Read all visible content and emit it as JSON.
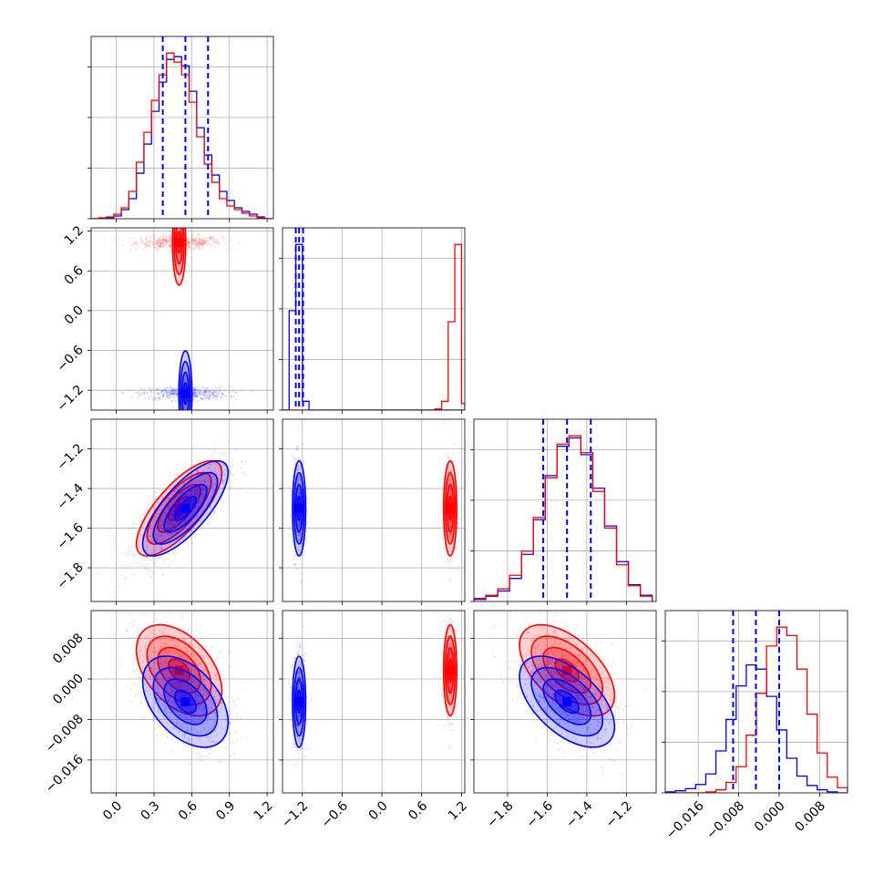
{
  "chart_data": {
    "type": "corner",
    "parameters": 4,
    "grid": true,
    "colors": {
      "series_a": "#ff0000",
      "series_b": "#0000ff",
      "quantile_line": "#0000ff"
    },
    "axes": [
      {
        "range": [
          -0.2,
          1.25
        ],
        "ticks": [
          0.0,
          0.3,
          0.6,
          0.9,
          1.2
        ],
        "tick_labels": [
          "0.0",
          "0.3",
          "0.6",
          "0.9",
          "1.2"
        ]
      },
      {
        "range": [
          -1.5,
          1.25
        ],
        "ticks": [
          -1.2,
          -0.6,
          0.0,
          0.6,
          1.2
        ],
        "tick_labels": [
          "−1.2",
          "−0.6",
          "0.0",
          "0.6",
          "1.2"
        ]
      },
      {
        "range": [
          -1.97,
          -1.05
        ],
        "ticks": [
          -1.8,
          -1.6,
          -1.4,
          -1.2
        ],
        "tick_labels": [
          "−1.8",
          "−1.6",
          "−1.4",
          "−1.2"
        ]
      },
      {
        "range": [
          -0.0225,
          0.0135
        ],
        "ticks": [
          -0.016,
          -0.008,
          0.0,
          0.008
        ],
        "tick_labels": [
          "−0.016",
          "−0.008",
          "0.000",
          "0.008"
        ]
      }
    ],
    "series": [
      {
        "name": "",
        "color": "#ff0000",
        "mean": [
          0.5,
          1.03,
          -1.5,
          0.0017
        ],
        "std": [
          0.17,
          0.05,
          0.12,
          0.0045
        ],
        "corr_02": 0.75,
        "corr_03": -0.45,
        "corr_23": -0.55
      },
      {
        "name": "",
        "color": "#0000ff",
        "mean": [
          0.55,
          -1.25,
          -1.5,
          -0.0045
        ],
        "std": [
          0.17,
          0.05,
          0.12,
          0.0045
        ],
        "corr_02": 0.75,
        "corr_03": -0.45,
        "corr_23": -0.55
      }
    ],
    "quantiles": [
      [
        0.37,
        0.55,
        0.73
      ],
      [
        -1.3,
        -1.25,
        -1.19
      ],
      [
        -1.62,
        -1.5,
        -1.38
      ],
      [
        -0.0091,
        -0.0046,
        0.0
      ]
    ],
    "histograms": {
      "p0": {
        "bin_edges": [
          -0.2,
          -0.14,
          -0.08,
          -0.02,
          0.04,
          0.1,
          0.16,
          0.22,
          0.28,
          0.34,
          0.4,
          0.46,
          0.52,
          0.58,
          0.64,
          0.7,
          0.76,
          0.82,
          0.88,
          0.94,
          1.0,
          1.06,
          1.12,
          1.18,
          1.24
        ],
        "red": [
          0,
          1,
          2,
          5,
          12,
          30,
          62,
          95,
          130,
          158,
          182,
          172,
          158,
          128,
          90,
          60,
          40,
          22,
          14,
          10,
          6,
          3,
          1,
          0
        ],
        "blue": [
          0,
          0,
          1,
          3,
          10,
          22,
          50,
          82,
          118,
          150,
          175,
          178,
          168,
          140,
          100,
          70,
          48,
          30,
          20,
          12,
          8,
          5,
          2,
          0
        ]
      },
      "p1": {
        "bin_edges": [
          -1.5,
          -1.4,
          -1.3,
          -1.2,
          -1.1,
          -1.0,
          0.7,
          0.8,
          0.9,
          1.0,
          1.1,
          1.2,
          1.25
        ],
        "red": [
          0,
          0,
          0,
          0,
          0,
          0,
          0,
          1,
          8,
          80,
          150,
          6
        ],
        "blue": [
          0,
          90,
          150,
          8,
          0,
          0,
          0,
          0,
          0,
          0,
          0,
          0
        ]
      },
      "p2": {
        "bin_edges": [
          -1.97,
          -1.91,
          -1.85,
          -1.79,
          -1.73,
          -1.67,
          -1.61,
          -1.55,
          -1.49,
          -1.43,
          -1.37,
          -1.31,
          -1.25,
          -1.19,
          -1.13,
          -1.07
        ],
        "red": [
          3,
          6,
          12,
          25,
          48,
          80,
          118,
          150,
          158,
          142,
          105,
          70,
          35,
          15,
          5
        ],
        "blue": [
          2,
          5,
          10,
          22,
          45,
          78,
          120,
          148,
          156,
          140,
          108,
          72,
          38,
          16,
          6
        ]
      },
      "p3": {
        "bin_edges": [
          -0.0225,
          -0.0205,
          -0.0185,
          -0.0165,
          -0.0145,
          -0.0125,
          -0.0105,
          -0.0085,
          -0.0065,
          -0.0045,
          -0.0025,
          -0.0005,
          0.0015,
          0.0035,
          0.0055,
          0.0075,
          0.0095,
          0.0115,
          0.0135
        ],
        "red": [
          0,
          0,
          0,
          0,
          1,
          3,
          10,
          25,
          55,
          95,
          140,
          158,
          150,
          118,
          75,
          38,
          15,
          5
        ],
        "blue": [
          1,
          2,
          4,
          8,
          18,
          40,
          70,
          102,
          122,
          118,
          92,
          60,
          33,
          16,
          7,
          3,
          1,
          0
        ]
      }
    }
  }
}
